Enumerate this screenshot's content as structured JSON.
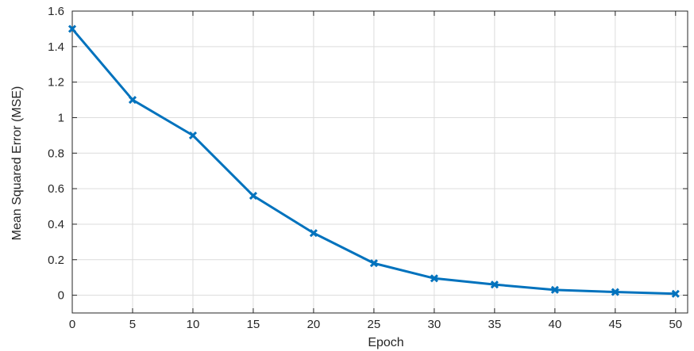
{
  "chart_data": {
    "type": "line",
    "xlabel": "Epoch",
    "ylabel": "Mean Squared Error (MSE)",
    "xlim": [
      0,
      51
    ],
    "ylim": [
      -0.1,
      1.6
    ],
    "xticks": [
      0,
      5,
      10,
      15,
      20,
      25,
      30,
      35,
      40,
      45,
      50
    ],
    "yticks": [
      0,
      0.2,
      0.4,
      0.6,
      0.8,
      1,
      1.2,
      1.4,
      1.6
    ],
    "xtick_labels": [
      "0",
      "5",
      "10",
      "15",
      "20",
      "25",
      "30",
      "35",
      "40",
      "45",
      "50"
    ],
    "ytick_labels": [
      "0",
      "0.2",
      "0.4",
      "0.6",
      "0.8",
      "1",
      "1.2",
      "1.4",
      "1.6"
    ],
    "grid": true,
    "series": [
      {
        "x": [
          0,
          5,
          10,
          15,
          20,
          25,
          30,
          35,
          40,
          45,
          50
        ],
        "y": [
          1.5,
          1.1,
          0.9,
          0.56,
          0.35,
          0.18,
          0.095,
          0.06,
          0.03,
          0.018,
          0.008
        ],
        "color": "#0072BD",
        "marker": "x"
      }
    ]
  }
}
